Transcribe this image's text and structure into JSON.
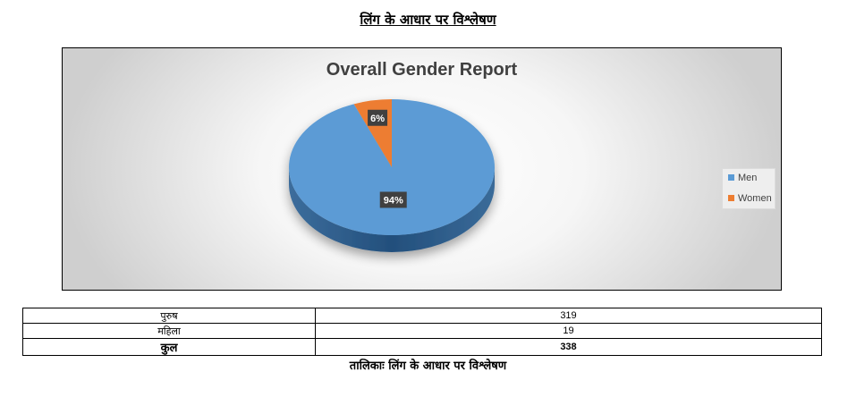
{
  "page_heading": "लिंग के आधार पर विश्लेषण",
  "colors": {
    "men": "#5b9bd5",
    "women": "#ed7d31",
    "label_bg": "#404040"
  },
  "chart_data": {
    "type": "pie",
    "title": "Overall Gender Report",
    "categories": [
      "Men",
      "Women"
    ],
    "values": [
      94,
      6
    ],
    "value_labels": [
      "94%",
      "6%"
    ],
    "legend": "right"
  },
  "table": {
    "rows": [
      {
        "label": "पुरुष",
        "value": "319"
      },
      {
        "label": "महिला",
        "value": "19"
      },
      {
        "label": "कुल",
        "value": "338"
      }
    ]
  },
  "caption": "तालिकाः लिंग के आधार पर विश्लेषण"
}
